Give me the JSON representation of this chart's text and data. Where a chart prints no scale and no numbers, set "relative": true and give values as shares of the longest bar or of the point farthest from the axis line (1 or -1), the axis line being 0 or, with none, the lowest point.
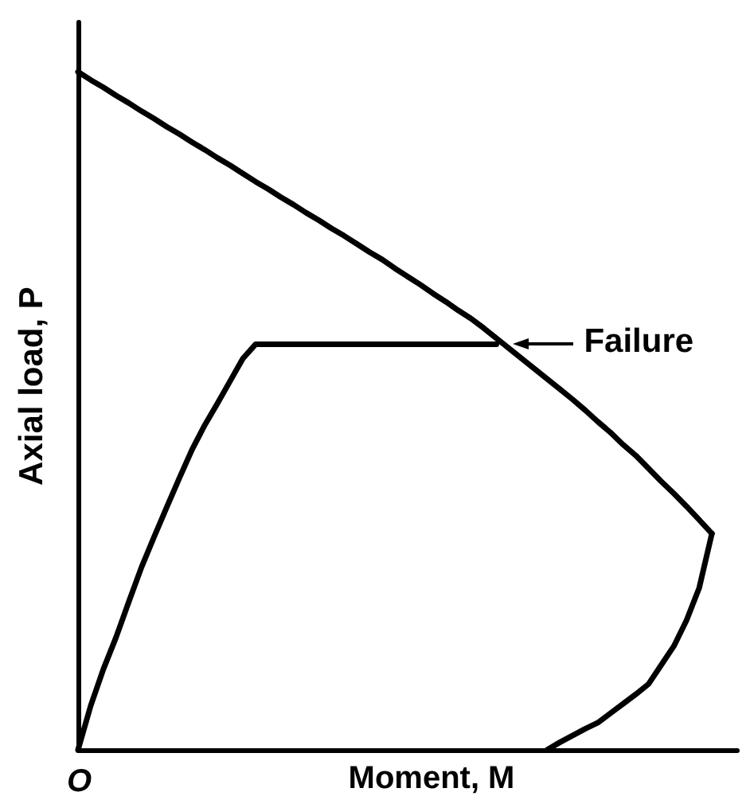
{
  "chart_data": {
    "type": "line",
    "relative": true,
    "xlabel": "Moment, M",
    "ylabel": "Axial load, P",
    "annotations": [
      "Failure",
      "O"
    ],
    "categories": [
      null,
      null,
      null,
      null,
      null,
      null,
      null,
      null,
      null,
      null,
      null,
      null,
      null,
      null,
      null,
      null,
      null,
      null,
      null,
      null,
      null,
      null,
      null,
      null,
      null,
      null,
      null,
      null,
      null,
      null,
      null,
      null,
      null,
      null,
      null,
      null,
      null,
      null,
      null,
      null,
      null,
      null,
      null,
      null,
      null,
      null,
      null,
      null,
      null,
      null,
      null,
      null,
      null
    ],
    "series": [
      {
        "color": "#000000",
        "values": [
          1,
          0.988,
          0.977,
          0.965,
          0.954,
          0.942,
          0.931,
          0.919,
          0.908,
          0.896,
          0.885,
          0.873,
          0.862,
          0.85,
          0.838,
          0.827,
          0.815,
          0.804,
          0.792,
          0.781,
          0.769,
          0.758,
          0.746,
          0.734,
          0.723,
          0.71,
          0.698,
          0.686,
          0.673,
          0.661,
          0.648,
          0.636,
          0.622,
          0.607,
          0.592,
          0.577,
          0.562,
          0.547,
          0.532,
          0.517,
          0.501,
          0.484,
          0.468,
          0.45,
          0.434,
          0.415,
          0.396,
          0.378,
          0.359,
          0.339,
          0.319,
          null,
          null
        ]
      },
      {
        "color": "#000000",
        "values": [
          null,
          null,
          null,
          null,
          null,
          null,
          null,
          null,
          null,
          null,
          null,
          null,
          null,
          null,
          null,
          null,
          null,
          null,
          null,
          null,
          null,
          null,
          null,
          null,
          null,
          null,
          null,
          null,
          null,
          null,
          null,
          null,
          null,
          null,
          null,
          null,
          null,
          0,
          0.011,
          0.021,
          0.031,
          0.04,
          0.054,
          0.068,
          0.082,
          0.097,
          0.125,
          0.153,
          0.191,
          0.239,
          0.319,
          null,
          null
        ]
      },
      {
        "color": "#000000",
        "values": [
          0,
          0.065,
          0.119,
          0.166,
          0.218,
          0.269,
          0.314,
          0.358,
          0.401,
          0.443,
          0.479,
          0.511,
          0.544,
          0.577,
          0.598,
          0.598,
          0.598,
          0.598,
          0.598,
          0.598,
          0.598,
          0.598,
          0.598,
          0.598,
          0.598,
          0.598,
          0.598,
          0.598,
          0.598,
          0.598,
          0.598,
          0.598,
          0.598,
          0.598,
          null,
          null,
          null,
          null,
          null,
          null,
          null,
          null,
          null,
          null,
          null,
          null,
          null,
          null,
          null,
          null,
          null,
          null,
          null
        ]
      }
    ]
  }
}
